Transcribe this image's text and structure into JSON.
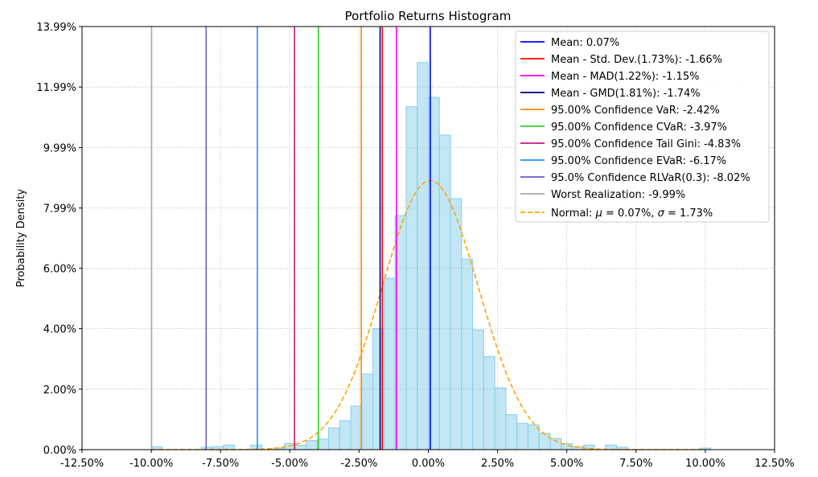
{
  "chart_data": {
    "type": "histogram",
    "title": "Portfolio Returns Histogram",
    "xlabel": "",
    "ylabel": "Probability Density",
    "xlim": [
      -12.5,
      12.5
    ],
    "ylim": [
      0,
      13.99
    ],
    "x_ticks": [
      "-12.50%",
      "-10.00%",
      "-7.50%",
      "-5.00%",
      "-2.50%",
      "0.00%",
      "2.50%",
      "5.00%",
      "7.50%",
      "10.00%",
      "12.50%"
    ],
    "x_tick_values": [
      -12.5,
      -10,
      -7.5,
      -5,
      -2.5,
      0,
      2.5,
      5,
      7.5,
      10,
      12.5
    ],
    "y_ticks": [
      "0.00%",
      "2.00%",
      "4.00%",
      "6.00%",
      "7.99%",
      "9.99%",
      "11.99%",
      "13.99%"
    ],
    "y_tick_values": [
      0,
      2.0,
      4.0,
      6.0,
      7.99,
      9.99,
      11.99,
      13.99
    ],
    "grid": true,
    "legend_position": "top-right",
    "bar_color": "#87ceeb",
    "histogram_bins": [
      {
        "center": -9.8,
        "value": 0.1
      },
      {
        "center": -8.0,
        "value": 0.08
      },
      {
        "center": -7.6,
        "value": 0.1
      },
      {
        "center": -7.2,
        "value": 0.15
      },
      {
        "center": -6.2,
        "value": 0.15
      },
      {
        "center": -5.4,
        "value": 0.05
      },
      {
        "center": -5.0,
        "value": 0.2
      },
      {
        "center": -4.6,
        "value": 0.15
      },
      {
        "center": -4.2,
        "value": 0.3
      },
      {
        "center": -3.8,
        "value": 0.35
      },
      {
        "center": -3.4,
        "value": 0.72
      },
      {
        "center": -3.0,
        "value": 0.96
      },
      {
        "center": -2.6,
        "value": 1.44
      },
      {
        "center": -2.2,
        "value": 2.5
      },
      {
        "center": -1.8,
        "value": 4.0
      },
      {
        "center": -1.4,
        "value": 5.67
      },
      {
        "center": -1.0,
        "value": 7.74
      },
      {
        "center": -0.6,
        "value": 11.34
      },
      {
        "center": -0.2,
        "value": 12.8
      },
      {
        "center": 0.2,
        "value": 11.65
      },
      {
        "center": 0.6,
        "value": 10.4
      },
      {
        "center": 1.0,
        "value": 8.3
      },
      {
        "center": 1.4,
        "value": 6.3
      },
      {
        "center": 1.8,
        "value": 3.96
      },
      {
        "center": 2.2,
        "value": 3.08
      },
      {
        "center": 2.6,
        "value": 2.04
      },
      {
        "center": 3.0,
        "value": 1.16
      },
      {
        "center": 3.4,
        "value": 0.87
      },
      {
        "center": 3.8,
        "value": 0.82
      },
      {
        "center": 4.2,
        "value": 0.54
      },
      {
        "center": 4.6,
        "value": 0.37
      },
      {
        "center": 5.0,
        "value": 0.2
      },
      {
        "center": 5.4,
        "value": 0.1
      },
      {
        "center": 5.8,
        "value": 0.15
      },
      {
        "center": 6.6,
        "value": 0.15
      },
      {
        "center": 7.0,
        "value": 0.08
      },
      {
        "center": 10.0,
        "value": 0.05
      }
    ],
    "bin_width": 0.4,
    "vertical_lines": [
      {
        "label": "Mean: 0.07%",
        "x": 0.07,
        "color": "#0000ff"
      },
      {
        "label": "Mean - Std. Dev.(1.73%): -1.66%",
        "x": -1.66,
        "color": "#ff0000"
      },
      {
        "label": "Mean - MAD(1.22%): -1.15%",
        "x": -1.15,
        "color": "#ff00ff"
      },
      {
        "label": "Mean - GMD(1.81%): -1.74%",
        "x": -1.74,
        "color": "#000080"
      },
      {
        "label": "95.00% Confidence VaR: -2.42%",
        "x": -2.42,
        "color": "#ff8c00"
      },
      {
        "label": "95.00% Confidence CVaR: -3.97%",
        "x": -3.97,
        "color": "#32cd32"
      },
      {
        "label": "95.00% Confidence Tail Gini: -4.83%",
        "x": -4.83,
        "color": "#c71585"
      },
      {
        "label": "95.00% Confidence EVaR: -6.17%",
        "x": -6.17,
        "color": "#1e90ff"
      },
      {
        "label": "95.0% Confidence RLVaR(0.3): -8.02%",
        "x": -8.02,
        "color": "#6a5acd"
      },
      {
        "label": "Worst Realization: -9.99%",
        "x": -9.99,
        "color": "#a9a9a9"
      }
    ],
    "normal_curve": {
      "label": "Normal: μ = 0.07%, σ = 1.73%",
      "label_prefix": "Normal: ",
      "mu_symbol": "μ",
      "mu_text": " = 0.07%, ",
      "sigma_symbol": "σ",
      "sigma_text": " = 1.73%",
      "mu": 0.07,
      "sigma": 1.73,
      "peak_density": 8.9,
      "color": "#ffa500",
      "style": "dashed"
    }
  }
}
